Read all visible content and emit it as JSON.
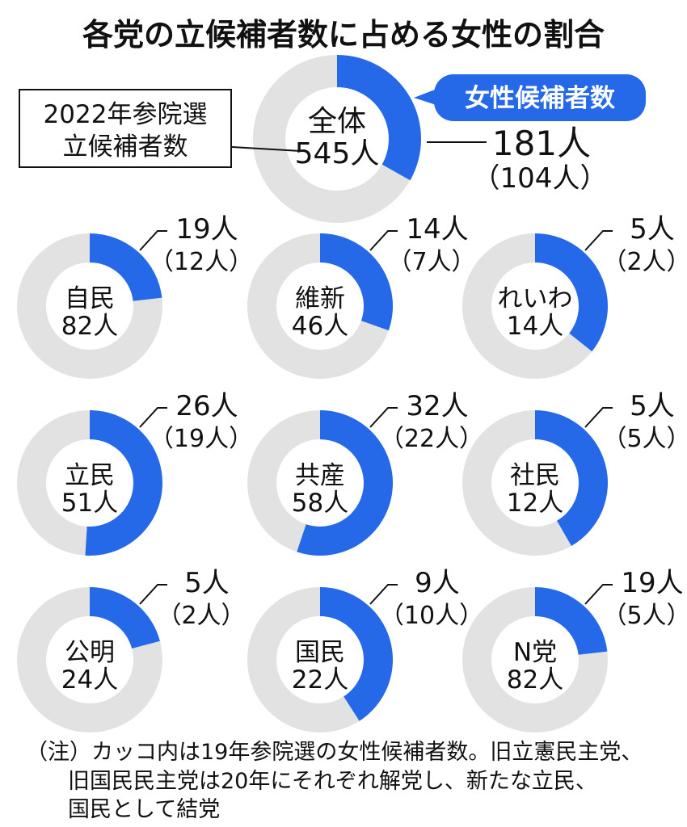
{
  "colors": {
    "female": "#2669e8",
    "other": "#e2e2e2",
    "ink": "#111111"
  },
  "chart_data": {
    "type": "pie",
    "title": "各党の立候補者数に占める女性の割合",
    "legend": "女性候補者数",
    "callout": [
      "2022年参院選",
      "立候補者数"
    ],
    "overall": {
      "label": "全体",
      "total": 545,
      "total_text": "545人",
      "female": 181,
      "female_text": "181人",
      "prev_text": "（104人）"
    },
    "parties": [
      {
        "label": "自民",
        "total": 82,
        "total_text": "82人",
        "female": 19,
        "female_text": "19人",
        "prev_text": "（12人）"
      },
      {
        "label": "維新",
        "total": 46,
        "total_text": "46人",
        "female": 14,
        "female_text": "14人",
        "prev_text": "（7人）"
      },
      {
        "label": "れいわ",
        "total": 14,
        "total_text": "14人",
        "female": 5,
        "female_text": "5人",
        "prev_text": "（2人）"
      },
      {
        "label": "立民",
        "total": 51,
        "total_text": "51人",
        "female": 26,
        "female_text": "26人",
        "prev_text": "（19人）"
      },
      {
        "label": "共産",
        "total": 58,
        "total_text": "58人",
        "female": 32,
        "female_text": "32人",
        "prev_text": "（22人）"
      },
      {
        "label": "社民",
        "total": 12,
        "total_text": "12人",
        "female": 5,
        "female_text": "5人",
        "prev_text": "（5人）"
      },
      {
        "label": "公明",
        "total": 24,
        "total_text": "24人",
        "female": 5,
        "female_text": "5人",
        "prev_text": "（2人）"
      },
      {
        "label": "国民",
        "total": 22,
        "total_text": "22人",
        "female": 9,
        "female_text": "9人",
        "prev_text": "（10人）"
      },
      {
        "label": "N党",
        "total": 82,
        "total_text": "82人",
        "female": 19,
        "female_text": "19人",
        "prev_text": "（5人）"
      }
    ],
    "note": [
      "（注）カッコ内は19年参院選の女性候補者数。旧立憲民主党、",
      "旧国民民主党は20年にそれぞれ解党し、新たな立民、",
      "国民として結党"
    ]
  }
}
